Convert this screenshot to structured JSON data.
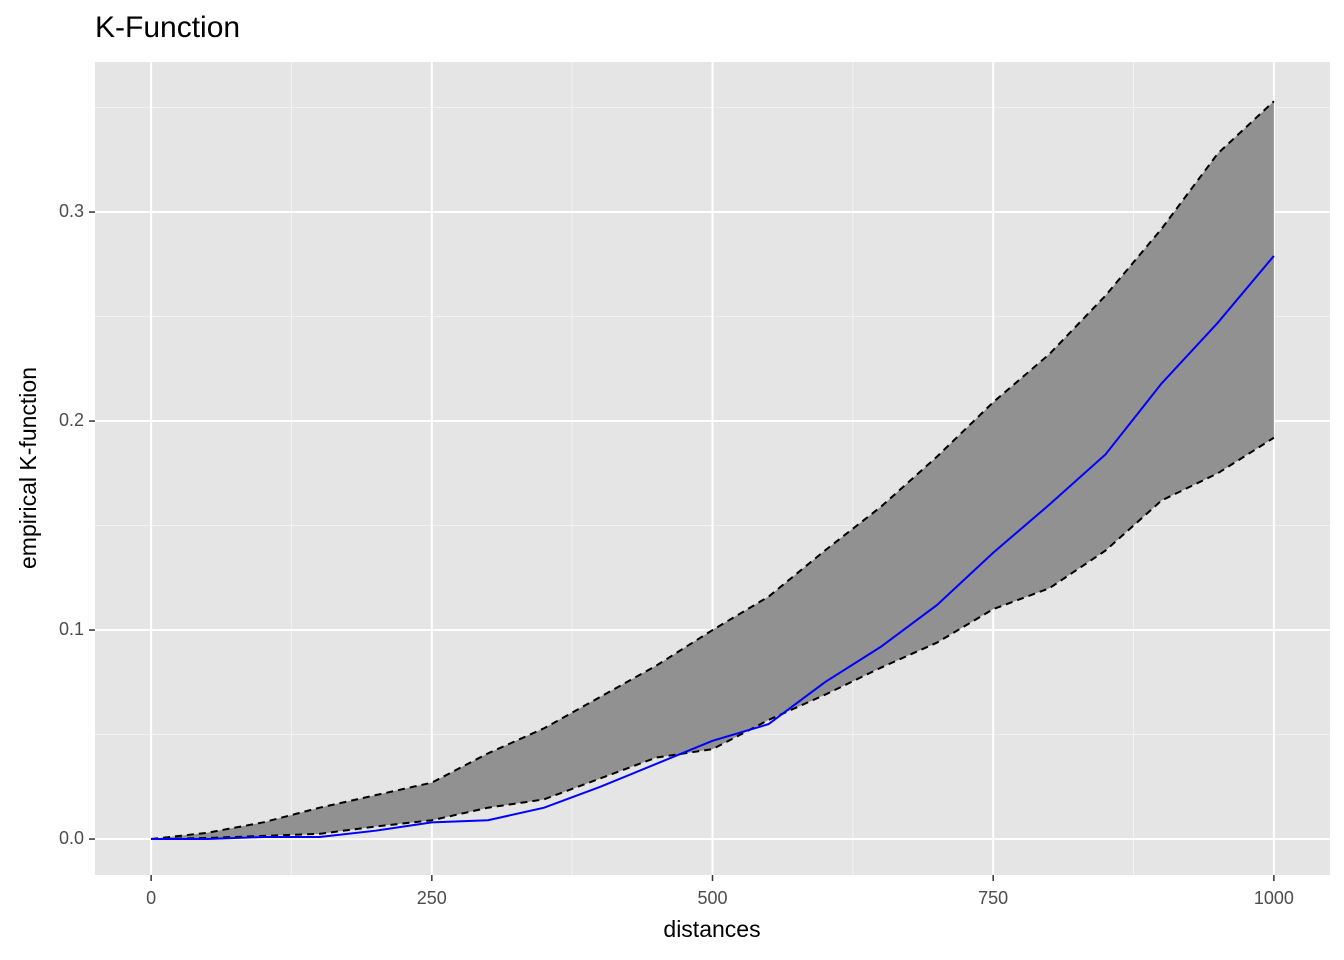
{
  "chart_data": {
    "type": "line",
    "title": "K-Function",
    "x_label": "distances",
    "y_label": "empirical K-function",
    "x": [
      0,
      50,
      100,
      150,
      200,
      250,
      300,
      350,
      400,
      450,
      500,
      550,
      600,
      650,
      700,
      750,
      800,
      850,
      900,
      950,
      1000
    ],
    "ribbon": {
      "fill": "#919191",
      "line_color": "#000000",
      "upper": [
        0,
        0.003,
        0.008,
        0.015,
        0.021,
        0.027,
        0.041,
        0.053,
        0.068,
        0.083,
        0.1,
        0.116,
        0.138,
        0.159,
        0.183,
        0.209,
        0.232,
        0.26,
        0.292,
        0.328,
        0.353
      ],
      "lower": [
        0,
        0.0005,
        0.0015,
        0.0025,
        0.006,
        0.009,
        0.015,
        0.019,
        0.029,
        0.039,
        0.043,
        0.057,
        0.069,
        0.082,
        0.094,
        0.11,
        0.12,
        0.138,
        0.162,
        0.175,
        0.192
      ]
    },
    "series": [
      {
        "color": "#0000ff",
        "values": [
          0,
          0,
          0.001,
          0.001,
          0.004,
          0.008,
          0.009,
          0.015,
          0.025,
          0.036,
          0.047,
          0.055,
          0.075,
          0.092,
          0.112,
          0.137,
          0.16,
          0.184,
          0.218,
          0.247,
          0.279
        ]
      }
    ],
    "xlim": [
      -50,
      1050
    ],
    "ylim": [
      -0.0172,
      0.3718
    ],
    "xticks": [
      0,
      250,
      500,
      750,
      1000
    ],
    "yticks": [
      {
        "value": 0,
        "label": "0.0"
      },
      0.1,
      0.2,
      0.3
    ],
    "x_minor_grid": [
      125,
      375,
      625,
      875
    ],
    "y_minor_grid": [
      0.05,
      0.15,
      0.25,
      0.35
    ],
    "grid": true
  }
}
